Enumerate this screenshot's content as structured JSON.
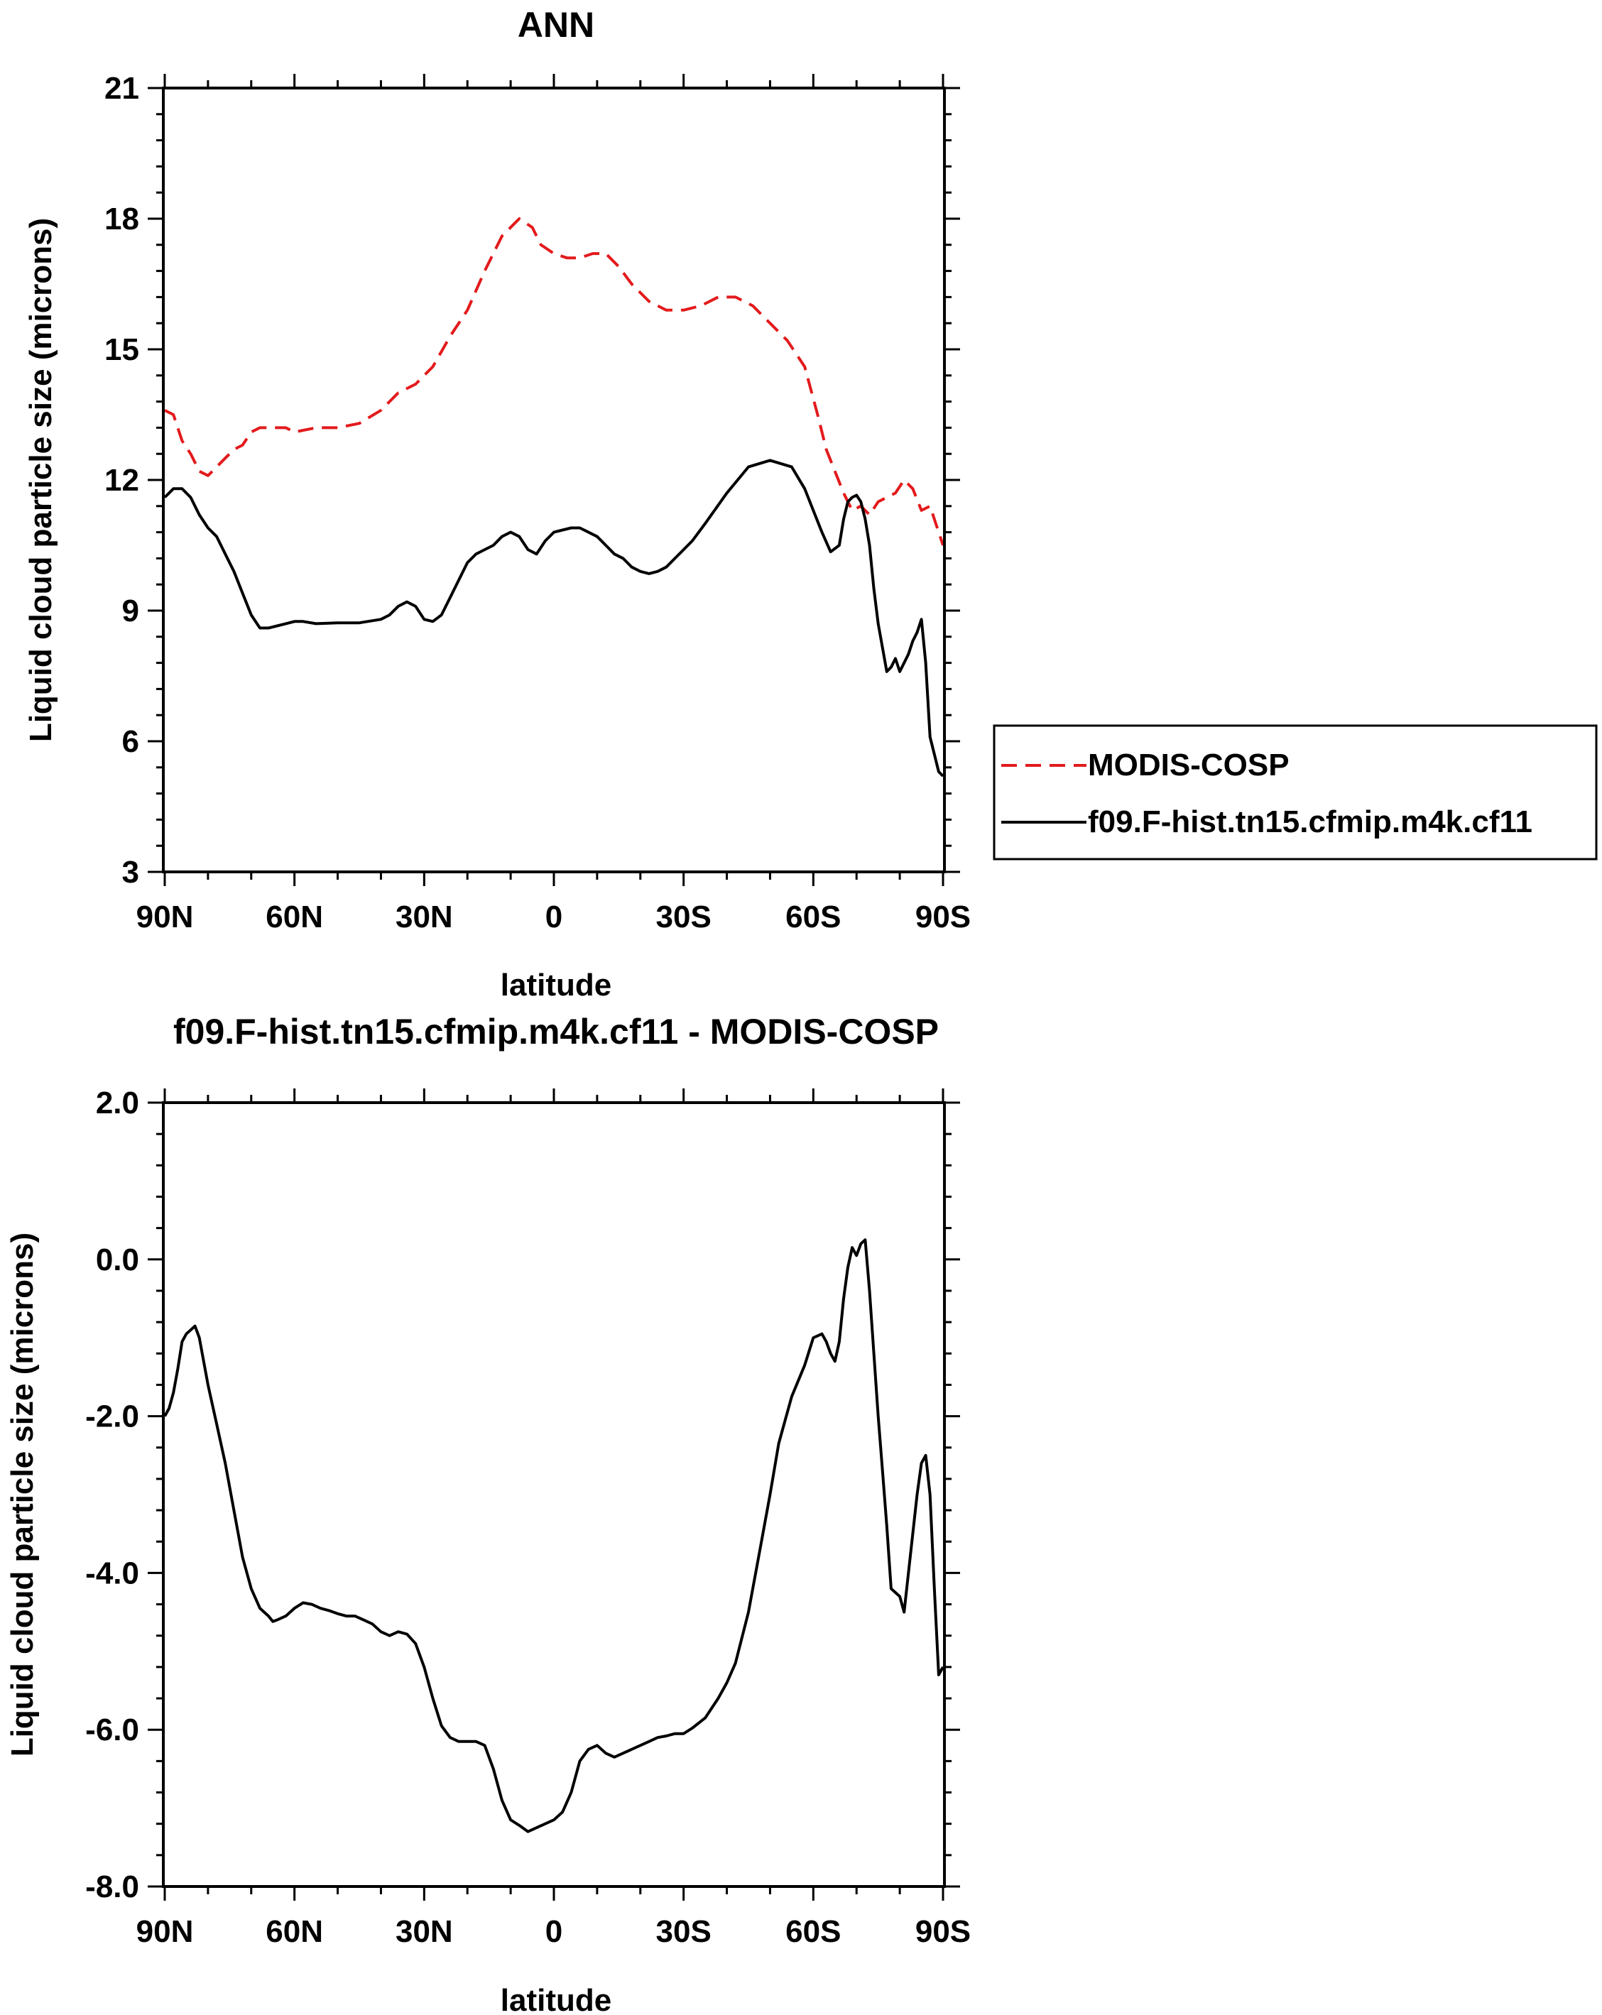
{
  "chart_data": [
    {
      "type": "line",
      "title": "ANN",
      "xlabel": "latitude",
      "ylabel": "Liquid cloud particle size (microns)",
      "xlim": [
        90,
        -90
      ],
      "ylim": [
        3,
        21
      ],
      "x_ticks": [
        90,
        60,
        30,
        0,
        -30,
        -60,
        -90
      ],
      "x_tick_labels": [
        "90N",
        "60N",
        "30N",
        "0",
        "30S",
        "60S",
        "90S"
      ],
      "y_ticks": [
        3,
        6,
        9,
        12,
        15,
        18,
        21
      ],
      "y_tick_labels": [
        "3",
        "6",
        "9",
        "12",
        "15",
        "18",
        "21"
      ],
      "legend": {
        "position": "right",
        "entries": [
          {
            "label": "MODIS-COSP",
            "color": "#e31a1c",
            "dash": "dashed"
          },
          {
            "label": "f09.F-hist.tn15.cfmip.m4k.cf11",
            "color": "#000000",
            "dash": "solid"
          }
        ]
      },
      "series": [
        {
          "name": "MODIS-COSP",
          "color": "#e31a1c",
          "dash": "dashed",
          "x": [
            90,
            88,
            86,
            84,
            82,
            80,
            78,
            76,
            74,
            72,
            70,
            68,
            65,
            62,
            60,
            55,
            50,
            45,
            40,
            36,
            32,
            28,
            24,
            20,
            16,
            12,
            8,
            5,
            3,
            0,
            -3,
            -6,
            -9,
            -12,
            -15,
            -18,
            -22,
            -26,
            -30,
            -34,
            -38,
            -42,
            -46,
            -50,
            -54,
            -58,
            -61,
            -63,
            -65,
            -67,
            -69,
            -71,
            -73,
            -75,
            -77,
            -79,
            -81,
            -83,
            -85,
            -87,
            -89,
            -90
          ],
          "y": [
            13.6,
            13.5,
            12.9,
            12.6,
            12.2,
            12.1,
            12.3,
            12.5,
            12.7,
            12.8,
            13.1,
            13.2,
            13.2,
            13.2,
            13.1,
            13.2,
            13.2,
            13.3,
            13.6,
            14.0,
            14.2,
            14.6,
            15.3,
            15.9,
            16.8,
            17.6,
            18.0,
            17.8,
            17.4,
            17.2,
            17.1,
            17.1,
            17.2,
            17.2,
            16.9,
            16.5,
            16.1,
            15.9,
            15.9,
            16.0,
            16.2,
            16.2,
            16.0,
            15.6,
            15.2,
            14.6,
            13.5,
            12.7,
            12.2,
            11.7,
            11.3,
            11.4,
            11.2,
            11.5,
            11.6,
            11.7,
            12.0,
            11.8,
            11.3,
            11.4,
            10.8,
            10.5
          ]
        },
        {
          "name": "f09.F-hist.tn15.cfmip.m4k.cf11",
          "color": "#000000",
          "dash": "solid",
          "x": [
            90,
            89,
            88,
            86,
            84,
            82,
            80,
            78,
            76,
            74,
            72,
            70,
            68,
            66,
            64,
            62,
            60,
            58,
            55,
            50,
            45,
            40,
            38,
            36,
            34,
            32,
            30,
            28,
            26,
            24,
            22,
            20,
            18,
            16,
            14,
            12,
            10,
            8,
            6,
            4,
            2,
            0,
            -2,
            -4,
            -6,
            -8,
            -10,
            -12,
            -14,
            -16,
            -18,
            -20,
            -22,
            -24,
            -26,
            -28,
            -30,
            -32,
            -35,
            -40,
            -45,
            -50,
            -55,
            -58,
            -60,
            -62,
            -64,
            -66,
            -67,
            -68,
            -69,
            -70,
            -71,
            -72,
            -73,
            -74,
            -75,
            -77,
            -78,
            -79,
            -80,
            -81,
            -82,
            -83,
            -84,
            -85,
            -86,
            -87,
            -88,
            -89,
            -90
          ],
          "y": [
            11.6,
            11.7,
            11.8,
            11.8,
            11.6,
            11.2,
            10.9,
            10.7,
            10.3,
            9.9,
            9.4,
            8.9,
            8.6,
            8.6,
            8.65,
            8.7,
            8.75,
            8.75,
            8.7,
            8.72,
            8.72,
            8.8,
            8.9,
            9.1,
            9.2,
            9.1,
            8.8,
            8.75,
            8.9,
            9.3,
            9.7,
            10.1,
            10.3,
            10.4,
            10.5,
            10.7,
            10.8,
            10.7,
            10.4,
            10.3,
            10.6,
            10.8,
            10.85,
            10.9,
            10.9,
            10.8,
            10.7,
            10.5,
            10.3,
            10.2,
            10.0,
            9.9,
            9.85,
            9.9,
            10.0,
            10.2,
            10.4,
            10.6,
            11.0,
            11.7,
            12.3,
            12.45,
            12.3,
            11.8,
            11.3,
            10.8,
            10.35,
            10.5,
            11.1,
            11.5,
            11.6,
            11.65,
            11.5,
            11.1,
            10.5,
            9.5,
            8.7,
            7.6,
            7.7,
            7.9,
            7.6,
            7.8,
            8.0,
            8.3,
            8.5,
            8.8,
            7.8,
            6.1,
            5.7,
            5.3,
            5.2
          ]
        }
      ]
    },
    {
      "type": "line",
      "title": "f09.F-hist.tn15.cfmip.m4k.cf11 - MODIS-COSP",
      "xlabel": "latitude",
      "ylabel": "Liquid cloud particle size (microns)",
      "xlim": [
        90,
        -90
      ],
      "ylim": [
        -8.0,
        2.0
      ],
      "x_ticks": [
        90,
        60,
        30,
        0,
        -30,
        -60,
        -90
      ],
      "x_tick_labels": [
        "90N",
        "60N",
        "30N",
        "0",
        "30S",
        "60S",
        "90S"
      ],
      "y_ticks": [
        -8.0,
        -6.0,
        -4.0,
        -2.0,
        0.0,
        2.0
      ],
      "y_tick_labels": [
        "-8.0",
        "-6.0",
        "-4.0",
        "-2.0",
        "0.0",
        "2.0"
      ],
      "series": [
        {
          "name": "f09.F-hist.tn15.cfmip.m4k.cf11 - MODIS-COSP",
          "color": "#000000",
          "dash": "solid",
          "x": [
            90,
            89,
            88,
            87,
            86,
            85,
            84,
            83,
            82,
            81,
            80,
            78,
            76,
            74,
            72,
            70,
            68,
            66,
            65,
            64,
            62,
            60,
            58,
            56,
            54,
            52,
            50,
            48,
            46,
            44,
            42,
            40,
            38,
            36,
            34,
            32,
            30,
            28,
            26,
            24,
            22,
            20,
            18,
            16,
            14,
            12,
            10,
            8,
            6,
            4,
            2,
            0,
            -2,
            -4,
            -6,
            -8,
            -10,
            -12,
            -14,
            -16,
            -18,
            -20,
            -22,
            -24,
            -26,
            -28,
            -30,
            -32,
            -35,
            -38,
            -40,
            -42,
            -45,
            -48,
            -50,
            -52,
            -55,
            -58,
            -60,
            -62,
            -63,
            -64,
            -65,
            -66,
            -67,
            -68,
            -69,
            -70,
            -71,
            -72,
            -73,
            -74,
            -75,
            -76,
            -77,
            -78,
            -79,
            -80,
            -81,
            -82,
            -83,
            -84,
            -85,
            -86,
            -87,
            -88,
            -89,
            -90
          ],
          "y": [
            -2.0,
            -1.9,
            -1.7,
            -1.4,
            -1.05,
            -0.95,
            -0.9,
            -0.85,
            -1.0,
            -1.3,
            -1.6,
            -2.1,
            -2.6,
            -3.2,
            -3.8,
            -4.2,
            -4.45,
            -4.55,
            -4.62,
            -4.6,
            -4.55,
            -4.45,
            -4.38,
            -4.4,
            -4.45,
            -4.48,
            -4.52,
            -4.55,
            -4.55,
            -4.6,
            -4.65,
            -4.75,
            -4.8,
            -4.75,
            -4.78,
            -4.9,
            -5.2,
            -5.6,
            -5.95,
            -6.1,
            -6.15,
            -6.15,
            -6.15,
            -6.2,
            -6.5,
            -6.9,
            -7.15,
            -7.22,
            -7.3,
            -7.25,
            -7.2,
            -7.15,
            -7.05,
            -6.8,
            -6.4,
            -6.25,
            -6.2,
            -6.3,
            -6.35,
            -6.3,
            -6.25,
            -6.2,
            -6.15,
            -6.1,
            -6.08,
            -6.05,
            -6.05,
            -5.98,
            -5.85,
            -5.6,
            -5.4,
            -5.15,
            -4.5,
            -3.6,
            -3.0,
            -2.35,
            -1.75,
            -1.35,
            -1.0,
            -0.95,
            -1.05,
            -1.2,
            -1.3,
            -1.05,
            -0.5,
            -0.1,
            0.15,
            0.05,
            0.2,
            0.25,
            -0.4,
            -1.2,
            -2.0,
            -2.7,
            -3.4,
            -4.2,
            -4.25,
            -4.3,
            -4.5,
            -4.0,
            -3.5,
            -3.0,
            -2.6,
            -2.5,
            -3.0,
            -4.2,
            -5.3,
            -5.2
          ],
          "line_width": 3
        }
      ]
    }
  ]
}
